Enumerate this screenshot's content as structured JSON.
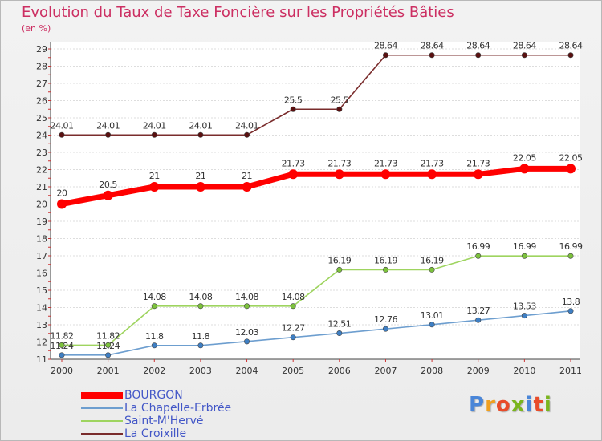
{
  "title": "Evolution du Taux de Taxe Foncière sur les Propriétés Bâties",
  "unit_label": "(en %)",
  "logo": {
    "text": "Proxiti",
    "letters": [
      {
        "char": "P",
        "color": "#4a86d8"
      },
      {
        "char": "r",
        "color": "#f0a020"
      },
      {
        "char": "o",
        "color": "#e84c2a"
      },
      {
        "char": "x",
        "color": "#7ab51d"
      },
      {
        "char": "i",
        "color": "#4a86d8"
      },
      {
        "char": "t",
        "color": "#e84c2a"
      },
      {
        "char": "i",
        "color": "#7ab51d"
      }
    ]
  },
  "legend": [
    {
      "name": "BOURGON",
      "color": "#ff0000"
    },
    {
      "name": "La Chapelle-Erbrée",
      "color": "#6d9ecf"
    },
    {
      "name": "Saint-M'Hervé",
      "color": "#9ed45f"
    },
    {
      "name": "La Croixille",
      "color": "#7a2c2c"
    }
  ],
  "chart_data": {
    "type": "line",
    "title": "Evolution du Taux de Taxe Foncière sur les Propriétés Bâties",
    "ylabel": "(en %)",
    "x": [
      "2000",
      "2001",
      "2002",
      "2003",
      "2004",
      "2005",
      "2006",
      "2007",
      "2008",
      "2009",
      "2010",
      "2011"
    ],
    "ylim": [
      11,
      29
    ],
    "yticks": [
      11,
      12,
      13,
      14,
      15,
      16,
      17,
      18,
      19,
      20,
      21,
      22,
      23,
      24,
      25,
      26,
      27,
      28,
      29
    ],
    "grid": "horizontal",
    "legend_position": "bottom-left",
    "series": [
      {
        "name": "La Croixille",
        "color": "#7a2c2c",
        "marker_color": "#5a1010",
        "values": [
          24.01,
          24.01,
          24.01,
          24.01,
          24.01,
          25.5,
          25.5,
          28.64,
          28.64,
          28.64,
          28.64,
          28.64
        ],
        "labels": [
          "24.01",
          "24.01",
          "24.01",
          "24.01",
          "24.01",
          "25.5",
          "25.5",
          "28.64",
          "28.64",
          "28.64",
          "28.64",
          "28.64"
        ]
      },
      {
        "name": "BOURGON",
        "color": "#ff0000",
        "marker_color": "#ff0000",
        "values": [
          20,
          20.5,
          21,
          21,
          21,
          21.73,
          21.73,
          21.73,
          21.73,
          21.73,
          22.05,
          22.05
        ],
        "labels": [
          "20",
          "20.5",
          "21",
          "21",
          "21",
          "21.73",
          "21.73",
          "21.73",
          "21.73",
          "21.73",
          "22.05",
          "22.05"
        ]
      },
      {
        "name": "Saint-M'Hervé",
        "color": "#9ed45f",
        "marker_color": "#7cc23c",
        "values": [
          11.82,
          11.82,
          14.08,
          14.08,
          14.08,
          14.08,
          16.19,
          16.19,
          16.19,
          16.99,
          16.99,
          16.99
        ],
        "labels": [
          "11.82",
          "11.82",
          "14.08",
          "14.08",
          "14.08",
          "14.08",
          "16.19",
          "16.19",
          "16.19",
          "16.99",
          "16.99",
          "16.99"
        ]
      },
      {
        "name": "La Chapelle-Erbrée",
        "color": "#6d9ecf",
        "marker_color": "#3e7fc4",
        "values": [
          11.24,
          11.24,
          11.8,
          11.8,
          12.03,
          12.27,
          12.51,
          12.76,
          13.01,
          13.27,
          13.53,
          13.8
        ],
        "labels": [
          "11.24",
          "11.24",
          "11.8",
          "11.8",
          "12.03",
          "12.27",
          "12.51",
          "12.76",
          "13.01",
          "13.27",
          "13.53",
          "13.8"
        ]
      }
    ]
  }
}
